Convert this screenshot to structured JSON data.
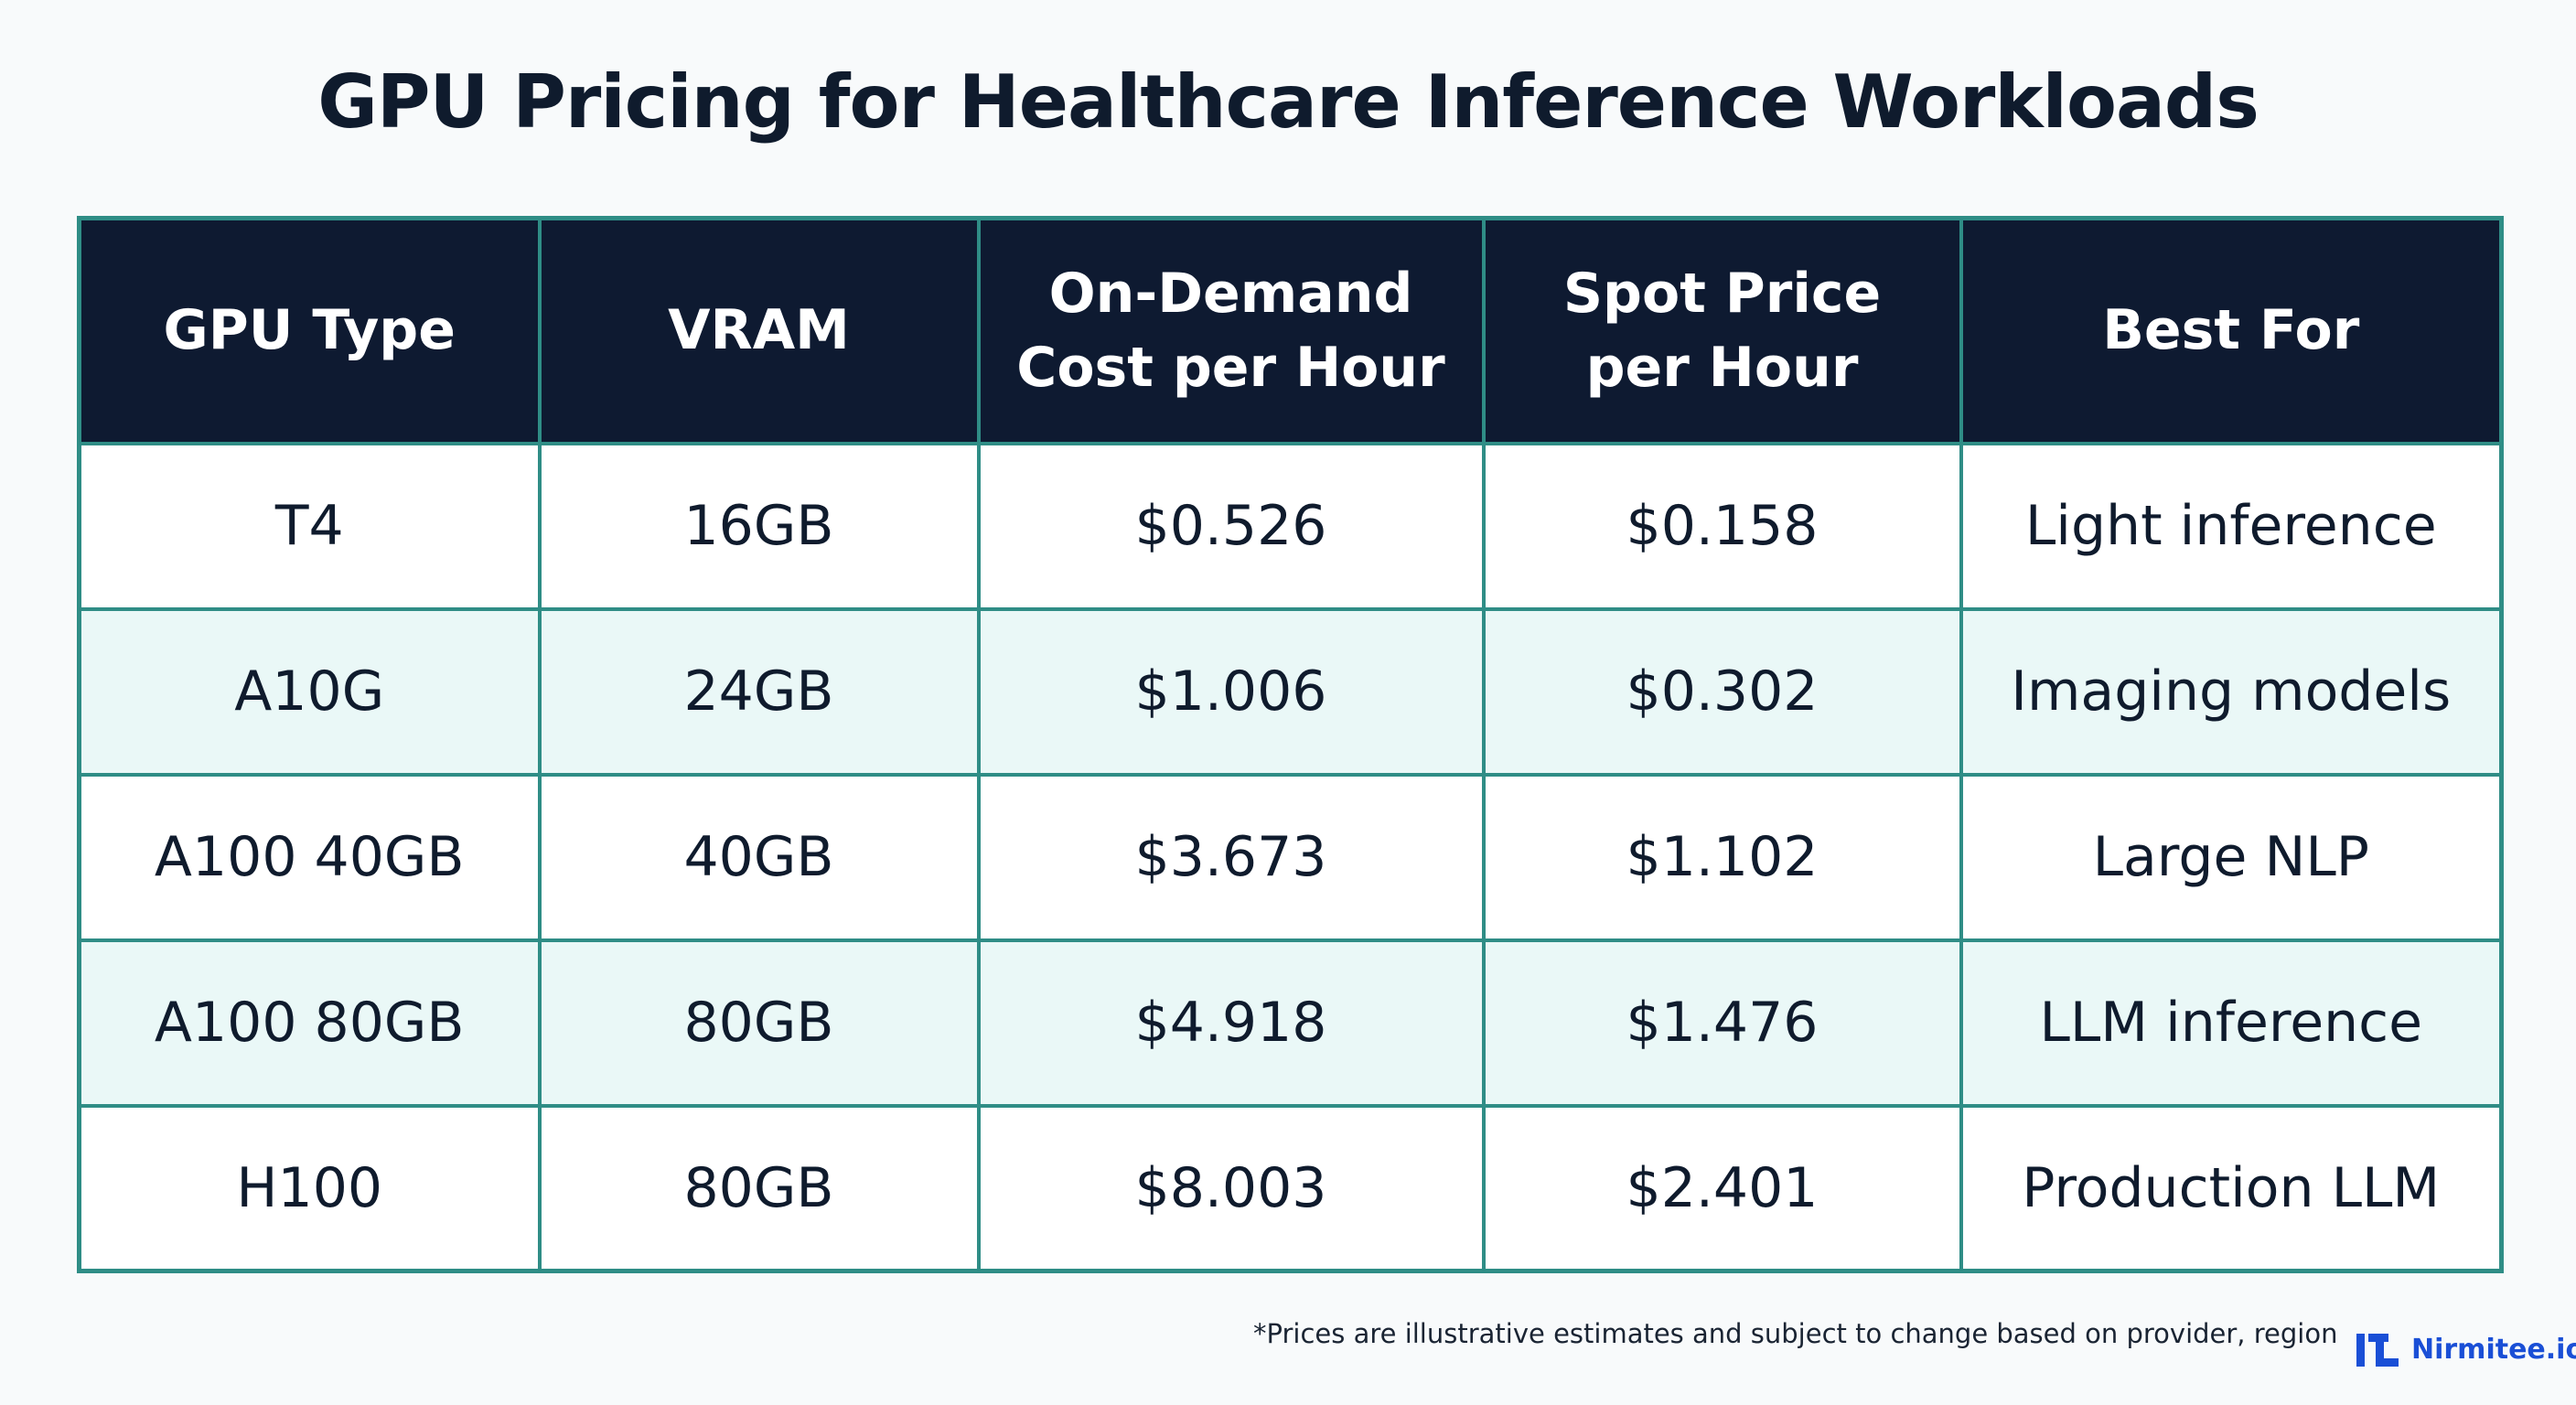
{
  "page": {
    "footnote": "*Prices are illustrative estimates and subject to change based on provider, region, and",
    "brand": "Nirmitee.io"
  },
  "colors": {
    "header_bg": "#0e1a31",
    "border": "#2f8d86",
    "row_alt_bg": "#eaf8f7",
    "row_bg": "#ffffff",
    "brand_blue": "#1a4fd6"
  },
  "icons": {
    "brand_logo": "nirmitee-logo-icon"
  },
  "chart_data": {
    "type": "table",
    "title": "GPU Pricing for Healthcare Inference Workloads",
    "columns": [
      "GPU Type",
      "VRAM",
      "On-Demand\nCost per Hour",
      "Spot Price\nper Hour",
      "Best For"
    ],
    "rows": [
      [
        "T4",
        "16GB",
        "$0.526",
        "$0.158",
        "Light inference"
      ],
      [
        "A10G",
        "24GB",
        "$1.006",
        "$0.302",
        "Imaging models"
      ],
      [
        "A100 40GB",
        "40GB",
        "$3.673",
        "$1.102",
        "Large NLP"
      ],
      [
        "A100 80GB",
        "80GB",
        "$4.918",
        "$1.476",
        "LLM inference"
      ],
      [
        "H100",
        "80GB",
        "$8.003",
        "$2.401",
        "Production LLM"
      ]
    ]
  }
}
